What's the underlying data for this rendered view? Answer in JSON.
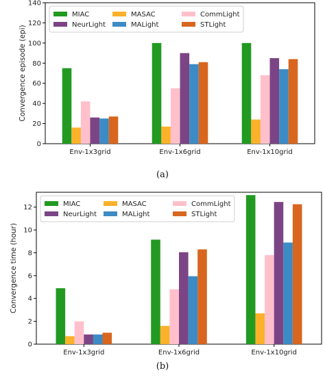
{
  "captions": {
    "a": "(a)",
    "b": "(b)"
  },
  "colors": {
    "MIAC": "#229a22",
    "MASAC": "#fbb12a",
    "CommLight": "#ffc0cb",
    "NeurLight": "#7b4585",
    "MALight": "#3d8bc4",
    "STLight": "#d8661e"
  },
  "chart_data": [
    {
      "type": "bar",
      "categories": [
        "Env-1x3grid",
        "Env-1x6grid",
        "Env-1x10grid"
      ],
      "ylabel": "Convergence episode (epi)",
      "xlabel": "",
      "ylim": [
        0,
        140
      ],
      "yticks": [
        0,
        20,
        40,
        60,
        80,
        100,
        120,
        140
      ],
      "legend_position": "top-left",
      "legend_columns": 3,
      "series": [
        {
          "name": "MIAC",
          "values": [
            75,
            100,
            100
          ]
        },
        {
          "name": "MASAC",
          "values": [
            16,
            17,
            24
          ]
        },
        {
          "name": "CommLight",
          "values": [
            42,
            55,
            68
          ]
        },
        {
          "name": "NeurLight",
          "values": [
            26,
            90,
            85
          ]
        },
        {
          "name": "MALight",
          "values": [
            25,
            79,
            74
          ]
        },
        {
          "name": "STLight",
          "values": [
            27,
            81,
            84
          ]
        }
      ]
    },
    {
      "type": "bar",
      "categories": [
        "Env-1x3grid",
        "Env-1x6grid",
        "Env-1x10grid"
      ],
      "ylabel": "Convergence time (hour)",
      "xlabel": "",
      "ylim": [
        0,
        13.3
      ],
      "yticks": [
        0,
        2,
        4,
        6,
        8,
        10,
        12
      ],
      "legend_position": "top-left",
      "legend_columns": 3,
      "series": [
        {
          "name": "MIAC",
          "values": [
            4.9,
            9.15,
            13.05
          ]
        },
        {
          "name": "MASAC",
          "values": [
            0.7,
            1.6,
            2.7
          ]
        },
        {
          "name": "CommLight",
          "values": [
            2.0,
            4.8,
            7.8
          ]
        },
        {
          "name": "NeurLight",
          "values": [
            0.85,
            8.05,
            12.45
          ]
        },
        {
          "name": "MALight",
          "values": [
            0.85,
            5.95,
            8.9
          ]
        },
        {
          "name": "STLight",
          "values": [
            1.0,
            8.3,
            12.25
          ]
        }
      ]
    }
  ]
}
